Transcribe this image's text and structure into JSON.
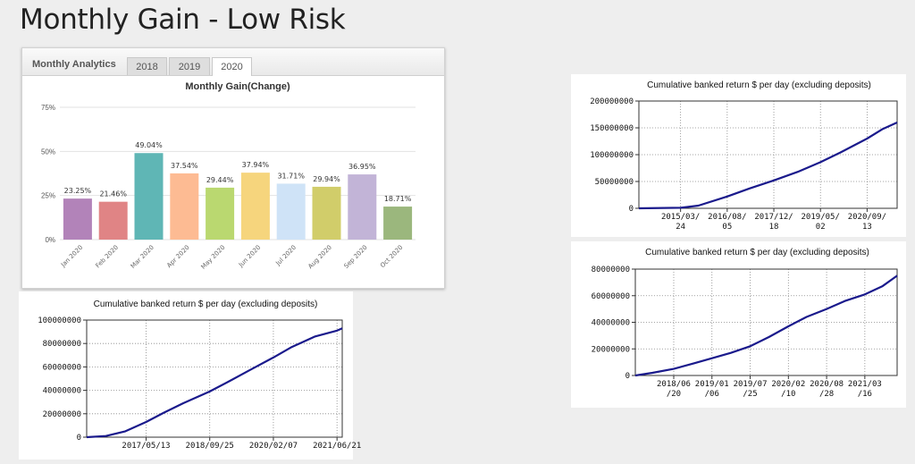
{
  "page": {
    "title": "Monthly Gain - Low Risk"
  },
  "analytics": {
    "title": "Monthly Analytics",
    "tabs": [
      {
        "label": "2018",
        "active": false
      },
      {
        "label": "2019",
        "active": false
      },
      {
        "label": "2020",
        "active": true
      }
    ]
  },
  "chart_data": [
    {
      "type": "bar",
      "title": "Monthly Gain(Change)",
      "categories": [
        "Jan 2020",
        "Feb 2020",
        "Mar 2020",
        "Apr 2020",
        "May 2020",
        "Jun 2020",
        "Jul 2020",
        "Aug 2020",
        "Sep 2020",
        "Oct 2020"
      ],
      "values": [
        23.25,
        21.46,
        49.04,
        37.54,
        29.44,
        37.94,
        31.71,
        29.94,
        36.95,
        18.71
      ],
      "data_labels": [
        "23.25%",
        "21.46%",
        "49.04%",
        "37.54%",
        "29.44%",
        "37.94%",
        "31.71%",
        "29.94%",
        "36.95%",
        "18.71%"
      ],
      "colors": [
        "#b283b9",
        "#e08485",
        "#5fb6b5",
        "#fdbb93",
        "#bad870",
        "#f6d57d",
        "#cfe3f7",
        "#d1cd6a",
        "#c2b4d7",
        "#9bb77d"
      ],
      "ylim": [
        0,
        75
      ],
      "yticks": [
        0,
        25,
        50,
        75
      ],
      "ytick_labels": [
        "0%",
        "25%",
        "50%",
        "75%"
      ],
      "grid": true,
      "xlabel": "",
      "ylabel": ""
    },
    {
      "type": "line",
      "title": "Cumulative banked return $ per day (excluding deposits)",
      "xlim": [
        "2016-02-01",
        "2021-08-01"
      ],
      "xticks": [
        "2017-05-13",
        "2018-09-25",
        "2020-02-07",
        "2021-06-21"
      ],
      "xtick_labels": [
        [
          "2017/05/13"
        ],
        [
          "2018/09/25"
        ],
        [
          "2020/02/07"
        ],
        [
          "2021/06/21"
        ]
      ],
      "ylim": [
        0,
        100000000
      ],
      "yticks": [
        0,
        20000000,
        40000000,
        60000000,
        80000000,
        100000000
      ],
      "ytick_labels": [
        "0",
        "20000000",
        "40000000",
        "60000000",
        "80000000",
        "100000000"
      ],
      "grid": true,
      "series": [
        {
          "color": "#1a1a8c",
          "x": [
            "2016-02-01",
            "2016-07-01",
            "2016-12-01",
            "2017-05-13",
            "2017-10-01",
            "2018-03-01",
            "2018-09-25",
            "2019-03-01",
            "2019-08-01",
            "2020-02-07",
            "2020-07-01",
            "2021-01-01",
            "2021-06-21",
            "2021-08-01"
          ],
          "y": [
            0,
            1000000,
            5000000,
            13000000,
            21000000,
            29000000,
            39000000,
            48000000,
            57000000,
            68000000,
            77000000,
            86000000,
            91000000,
            93000000
          ]
        }
      ]
    },
    {
      "type": "line",
      "title": "Cumulative banked return $ per day (excluding deposits)",
      "xlim": [
        "2014-01-01",
        "2021-08-01"
      ],
      "xticks": [
        "2015-03-24",
        "2016-08-05",
        "2017-12-18",
        "2019-05-02",
        "2020-09-13"
      ],
      "xtick_labels": [
        [
          "2015/03/",
          "24"
        ],
        [
          "2016/08/",
          "05"
        ],
        [
          "2017/12/",
          "18"
        ],
        [
          "2019/05/",
          "02"
        ],
        [
          "2020/09/",
          "13"
        ]
      ],
      "ylim": [
        0,
        200000000
      ],
      "yticks": [
        0,
        50000000,
        100000000,
        150000000,
        200000000
      ],
      "ytick_labels": [
        "0",
        "50000000",
        "100000000",
        "150000000",
        "200000000"
      ],
      "grid": true,
      "series": [
        {
          "color": "#1a1a8c",
          "x": [
            "2014-01-01",
            "2015-03-24",
            "2015-10-01",
            "2016-08-05",
            "2017-04-01",
            "2017-12-18",
            "2018-09-01",
            "2019-05-02",
            "2019-12-01",
            "2020-09-13",
            "2021-03-01",
            "2021-08-01"
          ],
          "y": [
            0,
            1000000,
            5000000,
            22000000,
            37000000,
            52000000,
            68000000,
            86000000,
            104000000,
            130000000,
            148000000,
            160000000
          ]
        }
      ]
    },
    {
      "type": "line",
      "title": "Cumulative banked return $ per day (excluding deposits)",
      "xlim": [
        "2017-12-01",
        "2021-09-01"
      ],
      "xticks": [
        "2018-06-20",
        "2019-01-06",
        "2019-07-25",
        "2020-02-10",
        "2020-08-28",
        "2021-03-16"
      ],
      "xtick_labels": [
        [
          "2018/06",
          "/20"
        ],
        [
          "2019/01",
          "/06"
        ],
        [
          "2019/07",
          "/25"
        ],
        [
          "2020/02",
          "/10"
        ],
        [
          "2020/08",
          "/28"
        ],
        [
          "2021/03",
          "/16"
        ]
      ],
      "ylim": [
        0,
        80000000
      ],
      "yticks": [
        0,
        20000000,
        40000000,
        60000000,
        80000000
      ],
      "ytick_labels": [
        "0",
        "20000000",
        "40000000",
        "60000000",
        "80000000"
      ],
      "grid": true,
      "series": [
        {
          "color": "#1a1a8c",
          "x": [
            "2017-12-01",
            "2018-03-01",
            "2018-06-20",
            "2018-10-01",
            "2019-01-06",
            "2019-04-15",
            "2019-07-25",
            "2019-11-01",
            "2020-02-10",
            "2020-05-15",
            "2020-08-28",
            "2020-12-01",
            "2021-03-16",
            "2021-06-15",
            "2021-09-01"
          ],
          "y": [
            0,
            2000000,
            5000000,
            9000000,
            13000000,
            17000000,
            22000000,
            29000000,
            37000000,
            44000000,
            50000000,
            56000000,
            61000000,
            67000000,
            75000000
          ]
        }
      ]
    }
  ]
}
